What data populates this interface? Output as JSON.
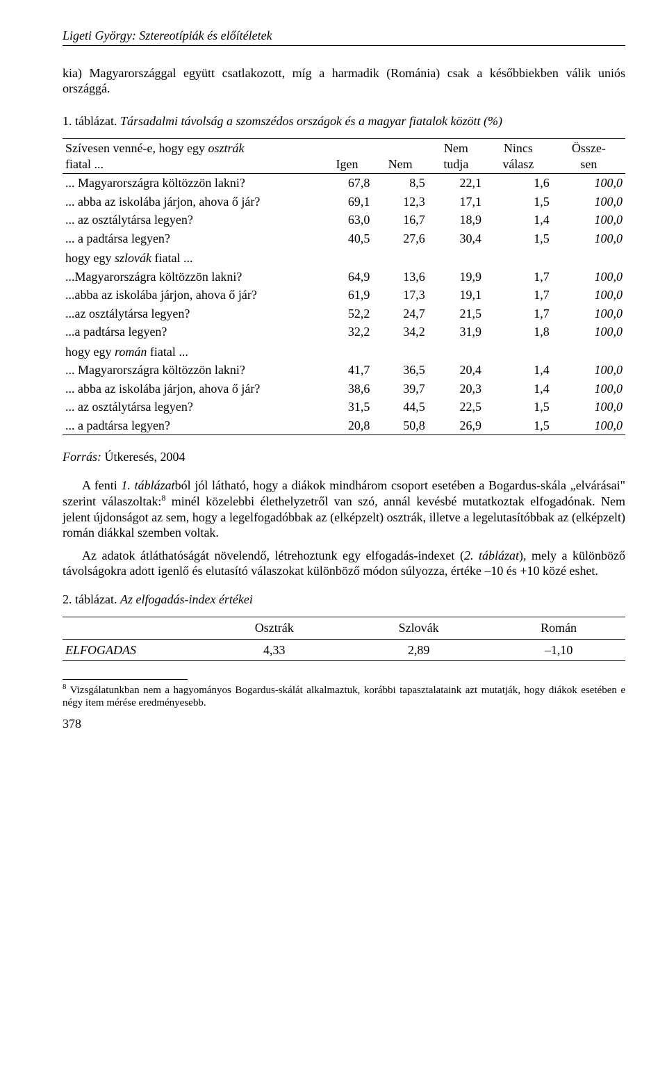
{
  "running_head": "Ligeti György: Sztereotípiák és előítéletek",
  "intro": "kia) Magyarországgal együtt csatlakozott, míg a harmadik (Románia) csak a későbbiekben válik uniós országgá.",
  "table1": {
    "number": "1. táblázat.",
    "caption": "Társadalmi távolság a szomszédos országok és a magyar fiatalok között (%)",
    "head_stub_1": "Szívesen venné-e, hogy egy ",
    "head_stub_em": "osztrák",
    "head_stub_2": " fiatal ...",
    "cols": [
      "Igen",
      "Nem",
      "Nem tudja",
      "Nincs válasz",
      "Össze-sen"
    ],
    "groups": [
      {
        "header": null,
        "rows": [
          {
            "label": "... Magyarországra költözzön lakni?",
            "v": [
              "67,8",
              "8,5",
              "22,1",
              "1,6",
              "100,0"
            ]
          },
          {
            "label": "... abba az iskolába járjon, ahova ő jár?",
            "v": [
              "69,1",
              "12,3",
              "17,1",
              "1,5",
              "100,0"
            ]
          },
          {
            "label": "... az osztálytársa legyen?",
            "v": [
              "63,0",
              "16,7",
              "18,9",
              "1,4",
              "100,0"
            ]
          },
          {
            "label": "... a padtársa legyen?",
            "v": [
              "40,5",
              "27,6",
              "30,4",
              "1,5",
              "100,0"
            ]
          }
        ]
      },
      {
        "header_pre": "hogy egy ",
        "header_em": "szlovák",
        "header_post": " fiatal ...",
        "rows": [
          {
            "label": "...Magyarországra költözzön lakni?",
            "v": [
              "64,9",
              "13,6",
              "19,9",
              "1,7",
              "100,0"
            ]
          },
          {
            "label": "...abba az iskolába járjon, ahova ő jár?",
            "v": [
              "61,9",
              "17,3",
              "19,1",
              "1,7",
              "100,0"
            ]
          },
          {
            "label": "...az osztálytársa legyen?",
            "v": [
              "52,2",
              "24,7",
              "21,5",
              "1,7",
              "100,0"
            ]
          },
          {
            "label": "...a padtársa legyen?",
            "v": [
              "32,2",
              "34,2",
              "31,9",
              "1,8",
              "100,0"
            ]
          }
        ]
      },
      {
        "header_pre": "hogy egy ",
        "header_em": "román",
        "header_post": " fiatal ...",
        "rows": [
          {
            "label": "... Magyarországra költözzön lakni?",
            "v": [
              "41,7",
              "36,5",
              "20,4",
              "1,4",
              "100,0"
            ]
          },
          {
            "label": "... abba az iskolába járjon, ahova ő jár?",
            "v": [
              "38,6",
              "39,7",
              "20,3",
              "1,4",
              "100,0"
            ]
          },
          {
            "label": "... az osztálytársa legyen?",
            "v": [
              "31,5",
              "44,5",
              "22,5",
              "1,5",
              "100,0"
            ]
          },
          {
            "label": "... a padtársa legyen?",
            "v": [
              "20,8",
              "50,8",
              "26,9",
              "1,5",
              "100,0"
            ]
          }
        ]
      }
    ]
  },
  "source_label": "Forrás:",
  "source_value": "Útkeresés, 2004",
  "para1_a": "A fenti ",
  "para1_em": "1. táblázat",
  "para1_b": "ból jól látható, hogy a diákok mindhárom csoport esetében a Bogardus-skála „elvárásai\" szerint válaszoltak:",
  "para1_sup": "8",
  "para1_c": " minél közelebbi élethelyzetről van szó, annál kevésbé mutatkoztak elfogadónak. Nem jelent újdonságot az sem, hogy a legelfogadóbbak az (elképzelt) osztrák, illetve a legelutasítóbbak az (elképzelt) román diákkal szemben voltak.",
  "para2_a": "Az adatok átláthatóságát növelendő, létrehoztunk egy elfogadás-indexet (",
  "para2_em": "2. táblázat",
  "para2_b": "), mely a különböző távolságokra adott igenlő és elutasító válaszokat különböző módon súlyozza, értéke –10 és +10 közé eshet.",
  "table2": {
    "number": "2. táblázat.",
    "caption": "Az elfogadás-index értékei",
    "cols": [
      "Osztrák",
      "Szlovák",
      "Román"
    ],
    "row_label": "ELFOGADAS",
    "values": [
      "4,33",
      "2,89",
      "–1,10"
    ]
  },
  "footnote_sup": "8",
  "footnote": " Vizsgálatunkban nem a hagyományos Bogardus-skálát alkalmaztuk, korábbi tapasztalataink azt mutatják, hogy diákok esetében e négy item mérése eredményesebb.",
  "pagenum": "378"
}
